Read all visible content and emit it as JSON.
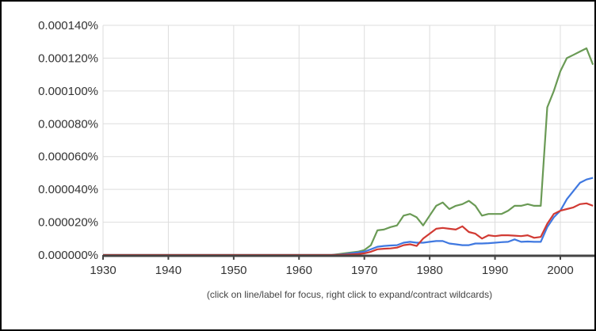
{
  "chart_data": {
    "type": "line",
    "title": "",
    "xlabel": "",
    "ylabel": "",
    "xlim": [
      1930,
      2005
    ],
    "ylim": [
      0,
      0.00014
    ],
    "grid": true,
    "legend": "none",
    "x_ticks": [
      "1930",
      "1940",
      "1950",
      "1960",
      "1970",
      "1980",
      "1990",
      "2000"
    ],
    "y_ticks": [
      "0.000000%",
      "0.000020%",
      "0.000040%",
      "0.000060%",
      "0.000080%",
      "0.000100%",
      "0.000120%",
      "0.000140%"
    ],
    "x": [
      1930,
      1960,
      1965,
      1966,
      1967,
      1968,
      1969,
      1970,
      1971,
      1972,
      1973,
      1974,
      1975,
      1976,
      1977,
      1978,
      1979,
      1980,
      1981,
      1982,
      1983,
      1984,
      1985,
      1986,
      1987,
      1988,
      1989,
      1990,
      1991,
      1992,
      1993,
      1994,
      1995,
      1996,
      1997,
      1998,
      1999,
      2000,
      2001,
      2002,
      2003,
      2004,
      2005
    ],
    "series": [
      {
        "color": "#6a9a55",
        "values": [
          0,
          0,
          0,
          5e-07,
          1e-06,
          1.5e-06,
          2e-06,
          3e-06,
          6e-06,
          1.5e-05,
          1.55e-05,
          1.7e-05,
          1.8e-05,
          2.4e-05,
          2.5e-05,
          2.3e-05,
          1.8e-05,
          2.4e-05,
          3e-05,
          3.2e-05,
          2.8e-05,
          3e-05,
          3.1e-05,
          3.3e-05,
          3e-05,
          2.4e-05,
          2.5e-05,
          2.5e-05,
          2.5e-05,
          2.7e-05,
          3e-05,
          3e-05,
          3.1e-05,
          3e-05,
          3e-05,
          9e-05,
          0.0001,
          0.000112,
          0.00012,
          0.000122,
          0.000124,
          0.000126,
          0.000116
        ]
      },
      {
        "color": "#3f78e0",
        "values": [
          0,
          0,
          0,
          2e-07,
          5e-07,
          1e-06,
          1.5e-06,
          2e-06,
          3.5e-06,
          5e-06,
          5.5e-06,
          5.8e-06,
          6e-06,
          7.5e-06,
          8e-06,
          7.5e-06,
          7.5e-06,
          8e-06,
          8.5e-06,
          8.5e-06,
          7e-06,
          6.5e-06,
          6e-06,
          6e-06,
          7e-06,
          7e-06,
          7.2e-06,
          7.5e-06,
          7.8e-06,
          8e-06,
          9.5e-06,
          8e-06,
          8.2e-06,
          8e-06,
          8e-06,
          1.7e-05,
          2.3e-05,
          2.7e-05,
          3.4e-05,
          3.9e-05,
          4.4e-05,
          4.6e-05,
          4.7e-05
        ]
      },
      {
        "color": "#d13a33",
        "values": [
          0,
          0,
          0,
          1e-07,
          2e-07,
          4e-07,
          6e-07,
          1e-06,
          2e-06,
          3.5e-06,
          3.8e-06,
          4e-06,
          4.5e-06,
          6e-06,
          6.5e-06,
          5.5e-06,
          1e-05,
          1.3e-05,
          1.6e-05,
          1.65e-05,
          1.6e-05,
          1.55e-05,
          1.75e-05,
          1.4e-05,
          1.3e-05,
          1e-05,
          1.2e-05,
          1.15e-05,
          1.2e-05,
          1.2e-05,
          1.18e-05,
          1.15e-05,
          1.2e-05,
          1.05e-05,
          1.1e-05,
          1.9e-05,
          2.5e-05,
          2.7e-05,
          2.8e-05,
          2.9e-05,
          3.1e-05,
          3.15e-05,
          3e-05
        ]
      }
    ]
  },
  "caption": "(click on line/label for focus, right click to expand/contract wildcards)"
}
